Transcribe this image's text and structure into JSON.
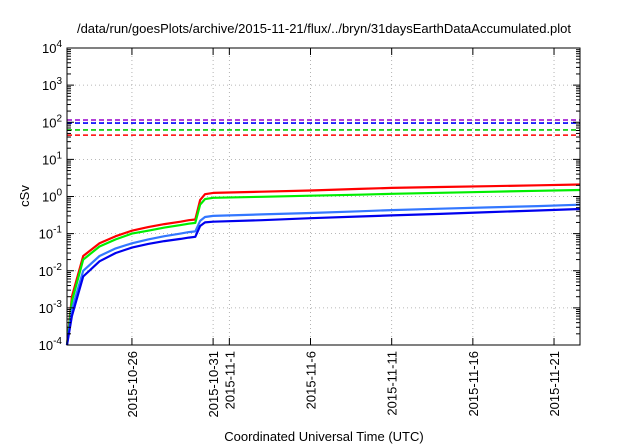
{
  "chart_data": {
    "type": "line",
    "title": "/data/run/goesPlots/archive/2015-11-21/flux/../bryn/31daysEarthDataAccumulated.plot",
    "xlabel": "Coordinated Universal Time (UTC)",
    "ylabel": "cSv",
    "yscale": "log",
    "ylim": [
      0.0001,
      10000
    ],
    "xlim": [
      "2015-10-22",
      "2015-11-22.6"
    ],
    "grid": true,
    "legend": "none",
    "x_ticks": [
      "2015-10-26",
      "2015-10-31",
      "2015-11-1",
      "2015-11-6",
      "2015-11-11",
      "2015-11-16",
      "2015-11-21"
    ],
    "y_ticks": [
      {
        "value": 0.0001,
        "base": "10",
        "exp": "-4"
      },
      {
        "value": 0.001,
        "base": "10",
        "exp": "-3"
      },
      {
        "value": 0.01,
        "base": "10",
        "exp": "-2"
      },
      {
        "value": 0.1,
        "base": "10",
        "exp": "-1"
      },
      {
        "value": 1,
        "base": "10",
        "exp": "0"
      },
      {
        "value": 10,
        "base": "10",
        "exp": "1"
      },
      {
        "value": 100,
        "base": "10",
        "exp": "2"
      },
      {
        "value": 1000,
        "base": "10",
        "exp": "3"
      },
      {
        "value": 10000,
        "base": "10",
        "exp": "4"
      }
    ],
    "thresholds": [
      {
        "value": 115,
        "color": "#9900cc"
      },
      {
        "value": 95,
        "color": "#0000ff"
      },
      {
        "value": 62,
        "color": "#00cc00"
      },
      {
        "value": 45,
        "color": "#ff0000"
      }
    ],
    "series": [
      {
        "color": "#ff0000",
        "x": [
          "2015-10-22",
          "2015-10-22.3",
          "2015-10-23",
          "2015-10-24",
          "2015-10-25",
          "2015-10-26",
          "2015-10-27",
          "2015-10-28",
          "2015-10-29",
          "2015-10-29.5",
          "2015-10-29.9",
          "2015-10-30.2",
          "2015-10-30.5",
          "2015-10-31",
          "2015-11-3",
          "2015-11-6",
          "2015-11-9",
          "2015-11-11",
          "2015-11-14",
          "2015-11-17",
          "2015-11-20",
          "2015-11-22.6"
        ],
        "values": [
          0.0001,
          0.002,
          0.025,
          0.055,
          0.085,
          0.12,
          0.15,
          0.18,
          0.21,
          0.23,
          0.24,
          0.8,
          1.15,
          1.25,
          1.35,
          1.45,
          1.6,
          1.7,
          1.8,
          1.9,
          2.0,
          2.1
        ]
      },
      {
        "color": "#00ee00",
        "x": [
          "2015-10-22",
          "2015-10-22.3",
          "2015-10-23",
          "2015-10-24",
          "2015-10-25",
          "2015-10-26",
          "2015-10-27",
          "2015-10-28",
          "2015-10-29",
          "2015-10-29.5",
          "2015-10-29.9",
          "2015-10-30.2",
          "2015-10-30.5",
          "2015-10-31",
          "2015-11-3",
          "2015-11-6",
          "2015-11-9",
          "2015-11-11",
          "2015-11-14",
          "2015-11-17",
          "2015-11-20",
          "2015-11-22.6"
        ],
        "values": [
          0.0001,
          0.0015,
          0.02,
          0.045,
          0.07,
          0.1,
          0.12,
          0.145,
          0.17,
          0.185,
          0.195,
          0.6,
          0.85,
          0.92,
          0.98,
          1.05,
          1.12,
          1.18,
          1.26,
          1.34,
          1.42,
          1.5
        ]
      },
      {
        "color": "#3377ff",
        "x": [
          "2015-10-22",
          "2015-10-22.3",
          "2015-10-23",
          "2015-10-24",
          "2015-10-25",
          "2015-10-26",
          "2015-10-27",
          "2015-10-28",
          "2015-10-29",
          "2015-10-29.5",
          "2015-10-29.9",
          "2015-10-30.2",
          "2015-10-30.5",
          "2015-10-31",
          "2015-11-3",
          "2015-11-6",
          "2015-11-9",
          "2015-11-11",
          "2015-11-14",
          "2015-11-17",
          "2015-11-20",
          "2015-11-22.6"
        ],
        "values": [
          0.0001,
          0.0009,
          0.01,
          0.025,
          0.04,
          0.055,
          0.07,
          0.085,
          0.1,
          0.11,
          0.115,
          0.22,
          0.28,
          0.3,
          0.33,
          0.36,
          0.4,
          0.43,
          0.47,
          0.51,
          0.55,
          0.6
        ]
      },
      {
        "color": "#0000ee",
        "x": [
          "2015-10-22",
          "2015-10-22.3",
          "2015-10-23",
          "2015-10-24",
          "2015-10-25",
          "2015-10-26",
          "2015-10-27",
          "2015-10-28",
          "2015-10-29",
          "2015-10-29.5",
          "2015-10-29.9",
          "2015-10-30.2",
          "2015-10-30.5",
          "2015-10-31",
          "2015-11-3",
          "2015-11-6",
          "2015-11-9",
          "2015-11-11",
          "2015-11-14",
          "2015-11-17",
          "2015-11-20",
          "2015-11-22.6"
        ],
        "values": [
          0.0001,
          0.0006,
          0.007,
          0.018,
          0.03,
          0.042,
          0.053,
          0.063,
          0.072,
          0.078,
          0.082,
          0.16,
          0.2,
          0.21,
          0.23,
          0.26,
          0.29,
          0.31,
          0.34,
          0.38,
          0.42,
          0.46
        ]
      }
    ]
  }
}
